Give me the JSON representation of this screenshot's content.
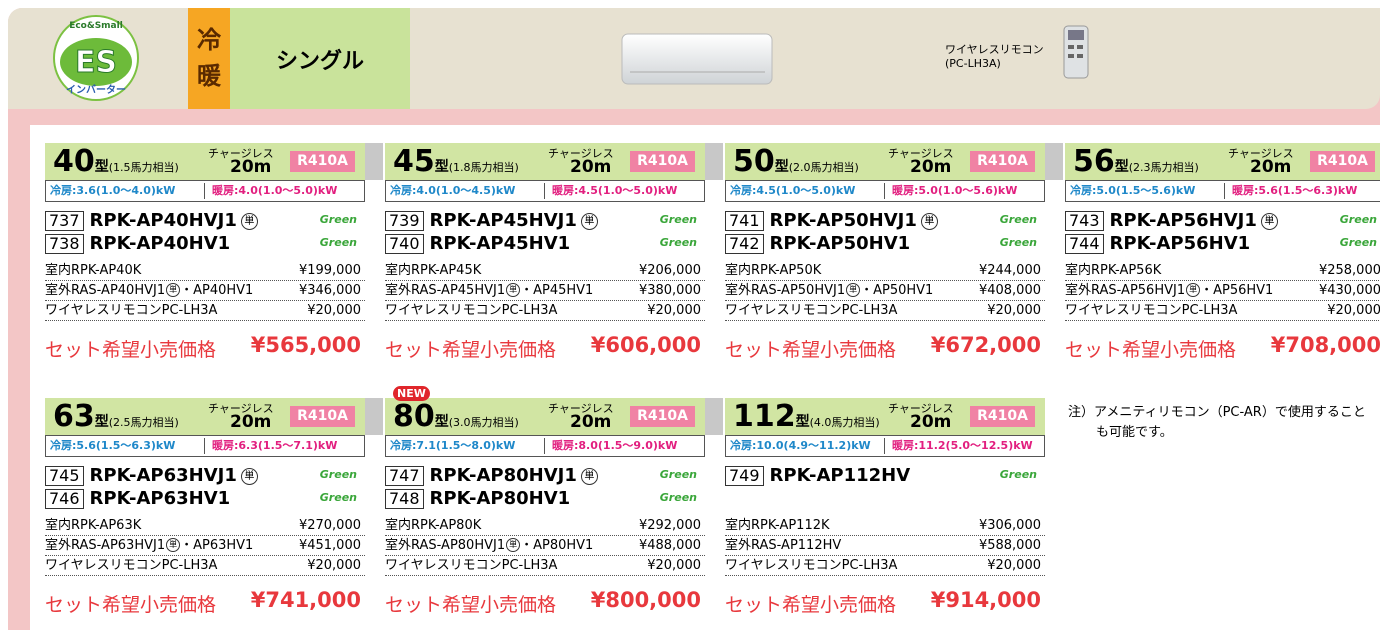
{
  "header": {
    "logo_top": "Eco&Small",
    "logo_main": "ES",
    "logo_bottom": "インバーター",
    "mode_1": "冷",
    "mode_2": "暖",
    "type": "シングル",
    "remote_label": "ワイヤレスリモコン",
    "remote_model": "(PC-LH3A)"
  },
  "common": {
    "unit": "型",
    "chargeless": "チャージレス",
    "charge_len": "20m",
    "refrigerant": "R410A",
    "cool_label": "冷房",
    "heat_label": "暖房",
    "green": "Green",
    "set_label": "セット希望小売価格"
  },
  "products": [
    {
      "size": "40",
      "hp": "(1.5馬力相当)",
      "cool": ":3.6(1.0～4.0)kW",
      "heat": ":4.0(1.0～5.0)kW",
      "models": [
        {
          "no": "737",
          "name": "RPK-AP40HVJ1",
          "mark": "単"
        },
        {
          "no": "738",
          "name": "RPK-AP40HV1"
        }
      ],
      "indoor": {
        "label": "室内RPK-AP40K",
        "price": "¥199,000"
      },
      "outdoor": {
        "label": "室外RAS-AP40HVJ1",
        "mark": "単",
        "suffix": "・AP40HV1",
        "price": "¥346,000"
      },
      "remote": {
        "label": "ワイヤレスリモコンPC-LH3A",
        "price": "¥20,000"
      },
      "set_price": "¥565,000"
    },
    {
      "size": "45",
      "hp": "(1.8馬力相当)",
      "cool": ":4.0(1.0～4.5)kW",
      "heat": ":4.5(1.0～5.0)kW",
      "models": [
        {
          "no": "739",
          "name": "RPK-AP45HVJ1",
          "mark": "単"
        },
        {
          "no": "740",
          "name": "RPK-AP45HV1"
        }
      ],
      "indoor": {
        "label": "室内RPK-AP45K",
        "price": "¥206,000"
      },
      "outdoor": {
        "label": "室外RAS-AP45HVJ1",
        "mark": "単",
        "suffix": "・AP45HV1",
        "price": "¥380,000"
      },
      "remote": {
        "label": "ワイヤレスリモコンPC-LH3A",
        "price": "¥20,000"
      },
      "set_price": "¥606,000"
    },
    {
      "size": "50",
      "hp": "(2.0馬力相当)",
      "cool": ":4.5(1.0～5.0)kW",
      "heat": ":5.0(1.0～5.6)kW",
      "models": [
        {
          "no": "741",
          "name": "RPK-AP50HVJ1",
          "mark": "単"
        },
        {
          "no": "742",
          "name": "RPK-AP50HV1"
        }
      ],
      "indoor": {
        "label": "室内RPK-AP50K",
        "price": "¥244,000"
      },
      "outdoor": {
        "label": "室外RAS-AP50HVJ1",
        "mark": "単",
        "suffix": "・AP50HV1",
        "price": "¥408,000"
      },
      "remote": {
        "label": "ワイヤレスリモコンPC-LH3A",
        "price": "¥20,000"
      },
      "set_price": "¥672,000"
    },
    {
      "size": "56",
      "hp": "(2.3馬力相当)",
      "cool": ":5.0(1.5～5.6)kW",
      "heat": ":5.6(1.5～6.3)kW",
      "models": [
        {
          "no": "743",
          "name": "RPK-AP56HVJ1",
          "mark": "単"
        },
        {
          "no": "744",
          "name": "RPK-AP56HV1"
        }
      ],
      "indoor": {
        "label": "室内RPK-AP56K",
        "price": "¥258,000"
      },
      "outdoor": {
        "label": "室外RAS-AP56HVJ1",
        "mark": "単",
        "suffix": "・AP56HV1",
        "price": "¥430,000"
      },
      "remote": {
        "label": "ワイヤレスリモコンPC-LH3A",
        "price": "¥20,000"
      },
      "set_price": "¥708,000"
    },
    {
      "size": "63",
      "hp": "(2.5馬力相当)",
      "cool": ":5.6(1.5～6.3)kW",
      "heat": ":6.3(1.5～7.1)kW",
      "models": [
        {
          "no": "745",
          "name": "RPK-AP63HVJ1",
          "mark": "単"
        },
        {
          "no": "746",
          "name": "RPK-AP63HV1"
        }
      ],
      "indoor": {
        "label": "室内RPK-AP63K",
        "price": "¥270,000"
      },
      "outdoor": {
        "label": "室外RAS-AP63HVJ1",
        "mark": "単",
        "suffix": "・AP63HV1",
        "price": "¥451,000"
      },
      "remote": {
        "label": "ワイヤレスリモコンPC-LH3A",
        "price": "¥20,000"
      },
      "set_price": "¥741,000"
    },
    {
      "badge": "NEW",
      "size": "80",
      "hp": "(3.0馬力相当)",
      "cool": ":7.1(1.5～8.0)kW",
      "heat": ":8.0(1.5～9.0)kW",
      "models": [
        {
          "no": "747",
          "name": "RPK-AP80HVJ1",
          "mark": "単"
        },
        {
          "no": "748",
          "name": "RPK-AP80HV1"
        }
      ],
      "indoor": {
        "label": "室内RPK-AP80K",
        "price": "¥292,000"
      },
      "outdoor": {
        "label": "室外RAS-AP80HVJ1",
        "mark": "単",
        "suffix": "・AP80HV1",
        "price": "¥488,000"
      },
      "remote": {
        "label": "ワイヤレスリモコンPC-LH3A",
        "price": "¥20,000"
      },
      "set_price": "¥800,000"
    },
    {
      "size": "112",
      "hp": "(4.0馬力相当)",
      "cool": ":10.0(4.9～11.2)kW",
      "heat": ":11.2(5.0～12.5)kW",
      "models": [
        {
          "no": "749",
          "name": "RPK-AP112HV"
        }
      ],
      "indoor": {
        "label": "室内RPK-AP112K",
        "price": "¥306,000"
      },
      "outdoor": {
        "label": "室外RAS-AP112HV",
        "price": "¥588,000"
      },
      "remote": {
        "label": "ワイヤレスリモコンPC-LH3A",
        "price": "¥20,000"
      },
      "set_price": "¥914,000"
    }
  ],
  "note": "注）アメニティリモコン（PC-AR）で使用することも可能です。"
}
